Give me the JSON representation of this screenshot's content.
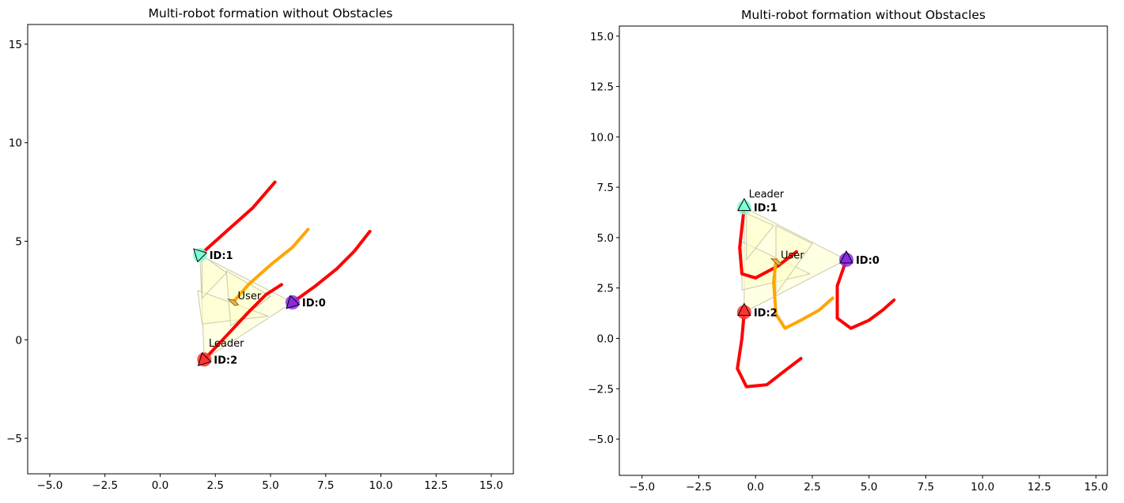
{
  "chart_data": [
    {
      "type": "scatter",
      "title": "Multi-robot formation without Obstacles",
      "xlabel": "",
      "ylabel": "",
      "xlim": [
        -6,
        16
      ],
      "ylim": [
        -6.8,
        16
      ],
      "xticks": [
        "−5.0",
        "−2.5",
        "0.0",
        "2.5",
        "5.0",
        "7.5",
        "10.0",
        "12.5",
        "15.0"
      ],
      "xtick_values": [
        -5,
        -2.5,
        0,
        2.5,
        5,
        7.5,
        10,
        12.5,
        15
      ],
      "yticks": [
        "15",
        "10",
        "5",
        "0",
        "−5"
      ],
      "ytick_values": [
        15,
        10,
        5,
        0,
        -5
      ],
      "grid": false,
      "colors": {
        "trail": "#ff0000",
        "user_trail": "#ffa500",
        "formation": "#ffffcc",
        "robot0": "#8a2be2",
        "robot1": "#7fffd4",
        "robot2": "#ff3333",
        "user": "#f2b04a"
      },
      "trails": [
        {
          "color": "trail",
          "points": [
            [
              2.0,
              -1.0
            ],
            [
              3.0,
              0.2
            ],
            [
              4.0,
              1.4
            ],
            [
              4.8,
              2.3
            ],
            [
              5.5,
              2.8
            ]
          ]
        },
        {
          "color": "trail",
          "points": [
            [
              1.8,
              4.3
            ],
            [
              2.5,
              5.0
            ],
            [
              3.3,
              5.8
            ],
            [
              4.2,
              6.7
            ],
            [
              5.2,
              8.0
            ]
          ]
        },
        {
          "color": "trail",
          "points": [
            [
              6.0,
              1.9
            ],
            [
              7.0,
              2.7
            ],
            [
              8.0,
              3.6
            ],
            [
              8.8,
              4.5
            ],
            [
              9.5,
              5.5
            ]
          ]
        },
        {
          "color": "user_trail",
          "points": [
            [
              3.3,
              1.9
            ],
            [
              4.0,
              2.8
            ],
            [
              5.0,
              3.8
            ],
            [
              6.0,
              4.7
            ],
            [
              6.7,
              5.6
            ]
          ]
        }
      ],
      "formation_triangles": [
        [
          [
            1.8,
            4.3
          ],
          [
            6.0,
            1.9
          ],
          [
            2.0,
            -1.0
          ]
        ],
        [
          [
            1.7,
            2.5
          ],
          [
            4.9,
            1.2
          ],
          [
            1.9,
            0.8
          ]
        ],
        [
          [
            3.0,
            3.5
          ],
          [
            5.0,
            2.2
          ],
          [
            3.2,
            0.7
          ]
        ],
        [
          [
            1.9,
            4.3
          ],
          [
            3.0,
            3.4
          ],
          [
            1.9,
            2.1
          ]
        ]
      ],
      "robots": [
        {
          "id_label": "ID:0",
          "x": 6.0,
          "y": 1.9,
          "color": "robot0",
          "heading_deg": 225
        },
        {
          "id_label": "ID:1",
          "x": 1.8,
          "y": 4.3,
          "color": "robot1",
          "heading_deg": 135
        },
        {
          "id_label": "ID:2",
          "x": 2.0,
          "y": -1.0,
          "color": "robot2",
          "heading_deg": 225
        }
      ],
      "leader": {
        "text": "Leader",
        "x": 2.2,
        "y": -0.35
      },
      "user": {
        "text": "User",
        "x": 3.3,
        "y": 1.9
      }
    },
    {
      "type": "scatter",
      "title": "Multi-robot formation without Obstacles",
      "xlabel": "",
      "ylabel": "",
      "xlim": [
        -6,
        15.5
      ],
      "ylim": [
        -6.8,
        15.5
      ],
      "xticks": [
        "−5.0",
        "−2.5",
        "0.0",
        "2.5",
        "5.0",
        "7.5",
        "10.0",
        "12.5",
        "15.0"
      ],
      "xtick_values": [
        -5,
        -2.5,
        0,
        2.5,
        5,
        7.5,
        10,
        12.5,
        15
      ],
      "yticks": [
        "15.0",
        "12.5",
        "10.0",
        "7.5",
        "5.0",
        "2.5",
        "0.0",
        "−2.5",
        "−5.0"
      ],
      "ytick_values": [
        15,
        12.5,
        10,
        7.5,
        5,
        2.5,
        0,
        -2.5,
        -5
      ],
      "grid": false,
      "colors": {
        "trail": "#ff0000",
        "user_trail": "#ffa500",
        "formation": "#ffffcc",
        "robot0": "#8a2be2",
        "robot1": "#7fffd4",
        "robot2": "#ff3333",
        "user": "#f2b04a"
      },
      "trails": [
        {
          "color": "trail",
          "points": [
            [
              -0.5,
              6.5
            ],
            [
              -0.6,
              5.5
            ],
            [
              -0.7,
              4.5
            ],
            [
              -0.6,
              3.2
            ],
            [
              0.0,
              3.0
            ],
            [
              1.0,
              3.6
            ],
            [
              1.8,
              4.3
            ]
          ]
        },
        {
          "color": "trail",
          "points": [
            [
              -0.5,
              1.3
            ],
            [
              -0.6,
              0.0
            ],
            [
              -0.8,
              -1.5
            ],
            [
              -0.4,
              -2.4
            ],
            [
              0.5,
              -2.3
            ],
            [
              1.3,
              -1.6
            ],
            [
              2.0,
              -1.0
            ]
          ]
        },
        {
          "color": "trail",
          "points": [
            [
              4.0,
              3.9
            ],
            [
              3.6,
              2.6
            ],
            [
              3.6,
              1.0
            ],
            [
              4.2,
              0.5
            ],
            [
              5.0,
              0.9
            ],
            [
              5.6,
              1.4
            ],
            [
              6.1,
              1.9
            ]
          ]
        },
        {
          "color": "user_trail",
          "points": [
            [
              0.9,
              3.9
            ],
            [
              0.8,
              2.8
            ],
            [
              0.9,
              1.2
            ],
            [
              1.3,
              0.5
            ],
            [
              2.0,
              0.9
            ],
            [
              2.8,
              1.4
            ],
            [
              3.4,
              2.0
            ]
          ]
        }
      ],
      "formation_triangles": [
        [
          [
            -0.5,
            6.5
          ],
          [
            4.0,
            3.9
          ],
          [
            -0.5,
            1.3
          ]
        ],
        [
          [
            -0.6,
            4.8
          ],
          [
            2.4,
            3.2
          ],
          [
            -0.6,
            2.4
          ]
        ],
        [
          [
            0.9,
            5.6
          ],
          [
            2.5,
            4.7
          ],
          [
            0.9,
            2.2
          ]
        ],
        [
          [
            -0.4,
            6.2
          ],
          [
            0.8,
            5.6
          ],
          [
            -0.4,
            3.9
          ]
        ]
      ],
      "robots": [
        {
          "id_label": "ID:0",
          "x": 4.0,
          "y": 3.9,
          "color": "robot0",
          "heading_deg": 90
        },
        {
          "id_label": "ID:1",
          "x": -0.5,
          "y": 6.5,
          "color": "robot1",
          "heading_deg": 90
        },
        {
          "id_label": "ID:2",
          "x": -0.5,
          "y": 1.3,
          "color": "robot2",
          "heading_deg": 90
        }
      ],
      "leader": {
        "text": "Leader",
        "x": -0.3,
        "y": 7.0
      },
      "user": {
        "text": "User",
        "x": 0.9,
        "y": 3.8
      }
    }
  ]
}
